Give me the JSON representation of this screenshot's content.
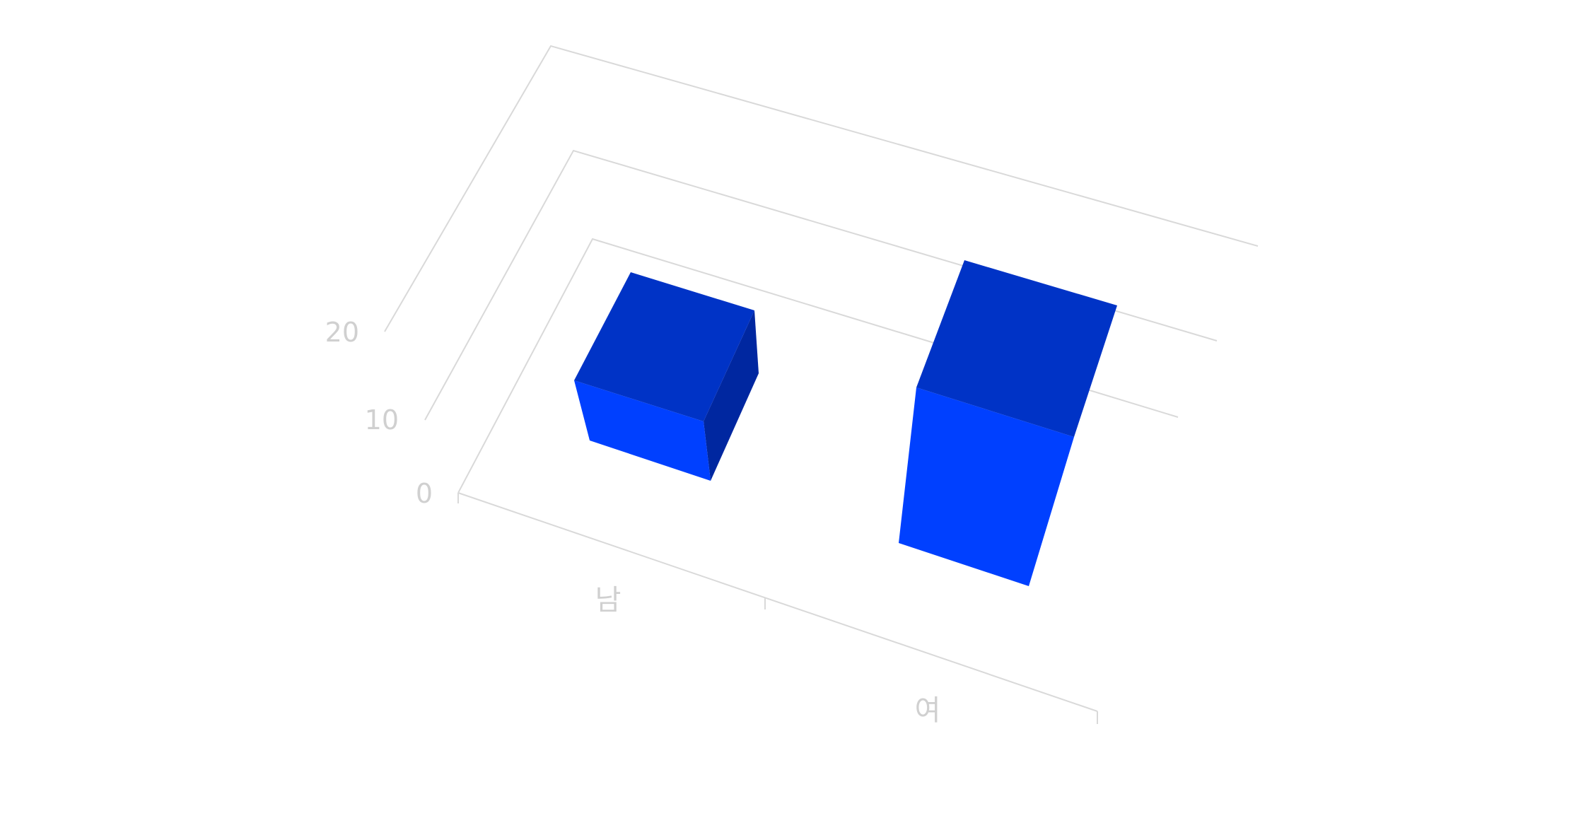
{
  "chart_data": {
    "type": "bar",
    "categories": [
      "남",
      "여"
    ],
    "series": [
      {
        "values": [
          5,
          15
        ]
      }
    ],
    "y_ticks": [
      "0",
      "10",
      "20"
    ],
    "ylim": [
      0,
      20
    ],
    "title": "",
    "xlabel": "",
    "ylabel": "",
    "grid": true,
    "legend": "none",
    "colors": {
      "bar_front": "#0040ff",
      "bar_top": "#0033c6",
      "bar_side": "#0027a0",
      "grid": "#d9d9d9",
      "label": "#d0d0d0"
    }
  }
}
